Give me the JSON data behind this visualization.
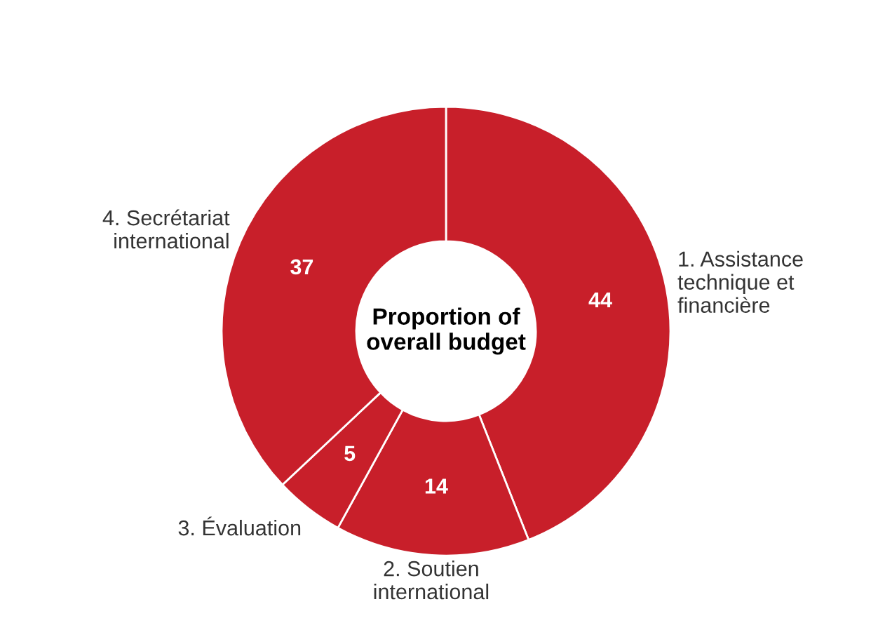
{
  "chart_data": {
    "type": "donut",
    "title": "Proportion of overall budget",
    "categories": [
      "1. Assistance technique et financière",
      "2. Soutien international",
      "3. Évaluation",
      "4. Secrétariat international"
    ],
    "values": [
      44,
      14,
      5,
      37
    ],
    "colors": [
      "#c81f2a",
      "#c81f2a",
      "#c81f2a",
      "#c81f2a"
    ],
    "data_labels": true,
    "legend": false
  }
}
